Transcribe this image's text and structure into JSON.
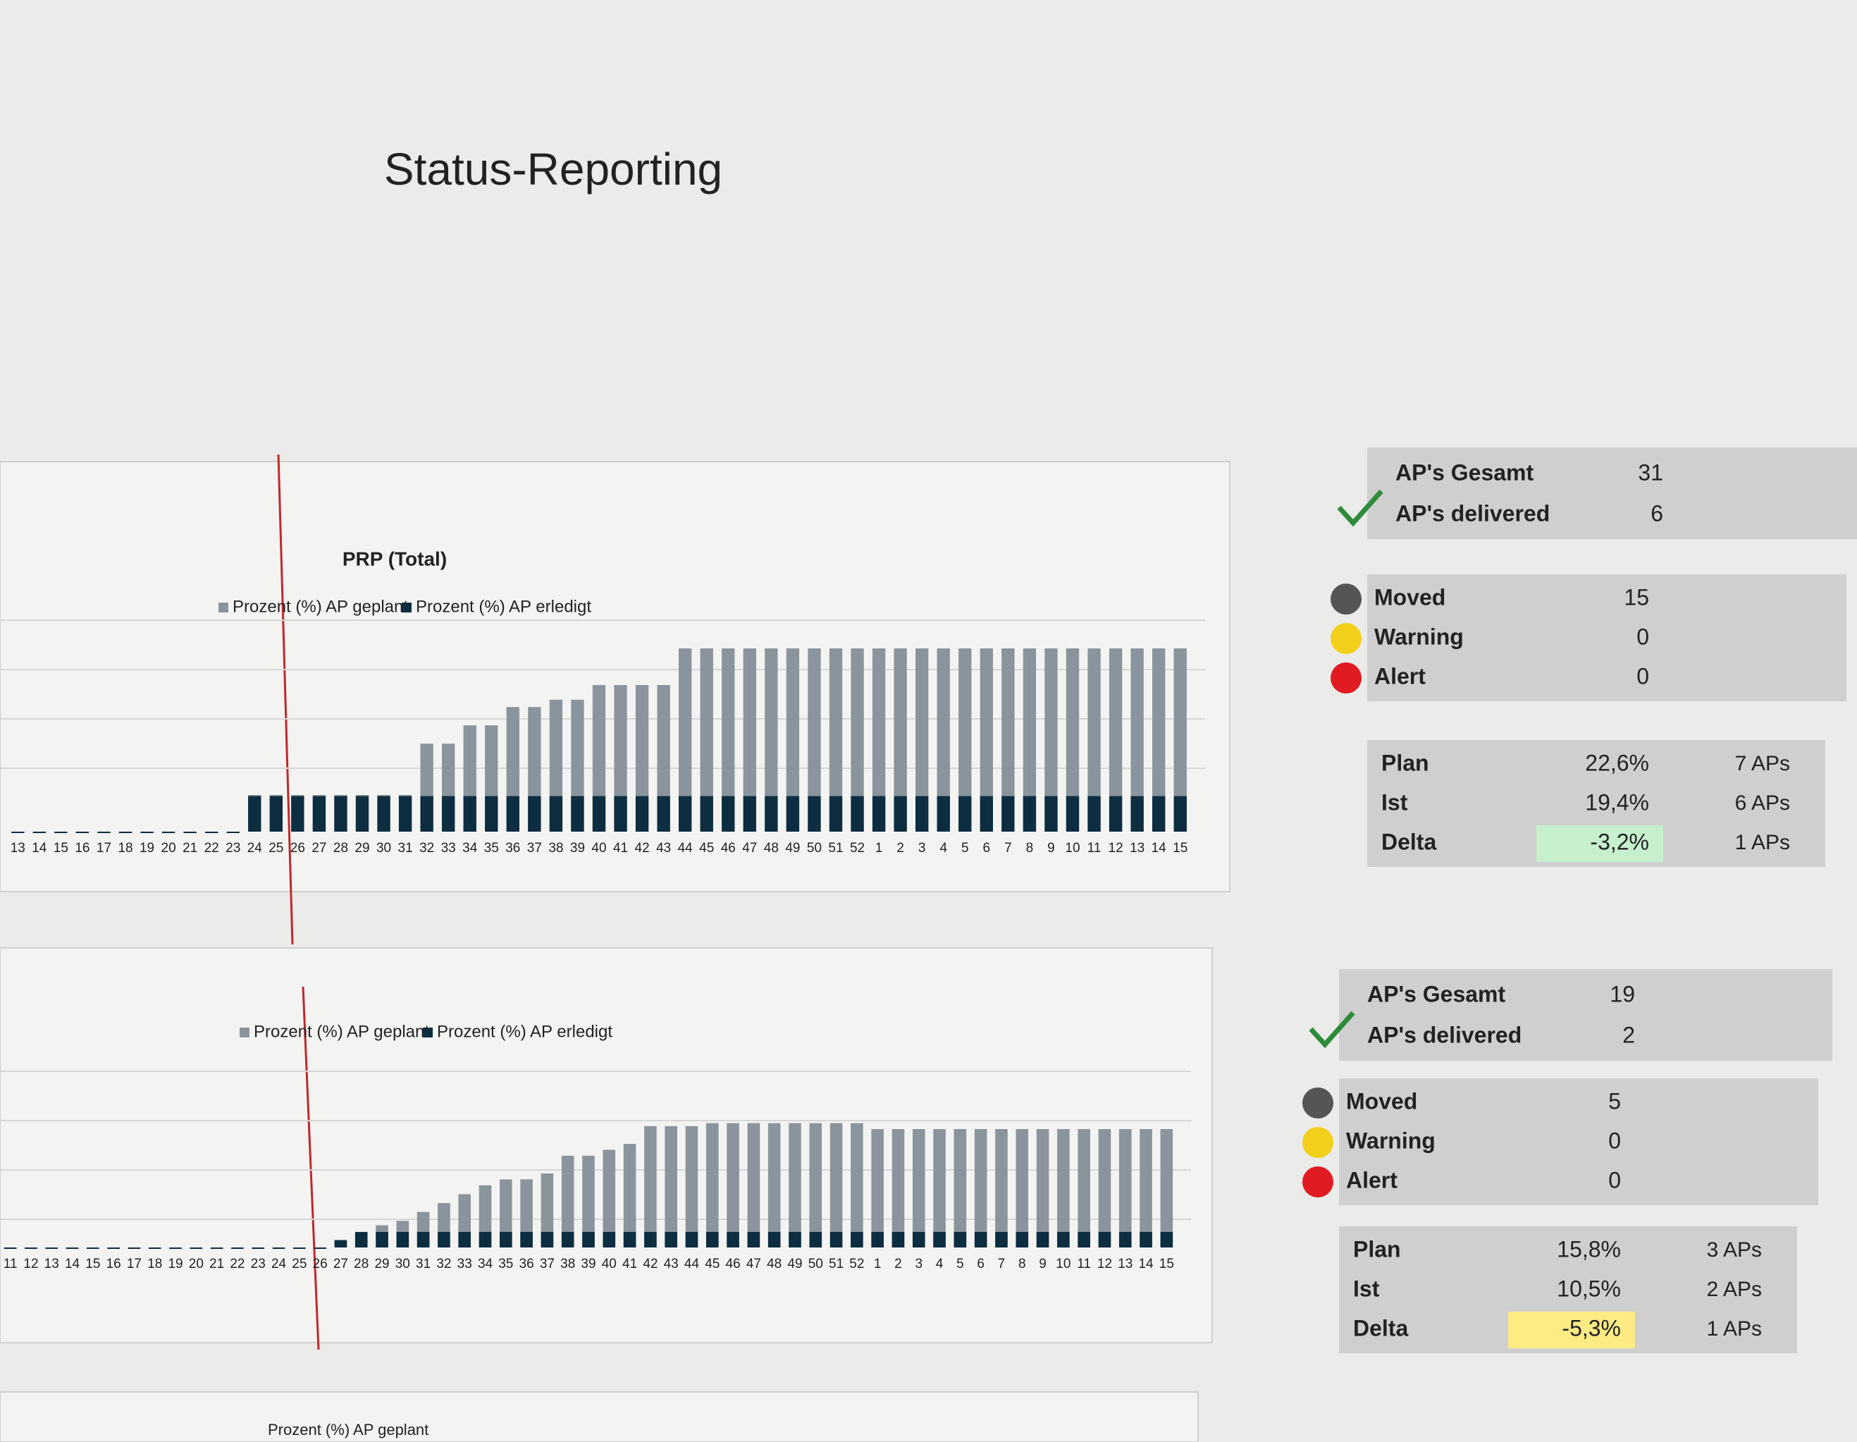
{
  "title": "Status-Reporting",
  "chart_data": [
    {
      "type": "bar",
      "title": "PRP (Total)",
      "categories": [
        "13",
        "14",
        "15",
        "16",
        "17",
        "18",
        "19",
        "20",
        "21",
        "22",
        "23",
        "24",
        "25",
        "26",
        "27",
        "28",
        "29",
        "30",
        "31",
        "32",
        "33",
        "34",
        "35",
        "36",
        "37",
        "38",
        "39",
        "40",
        "41",
        "42",
        "43",
        "44",
        "45",
        "46",
        "47",
        "48",
        "49",
        "50",
        "51",
        "52",
        "1",
        "2",
        "3",
        "4",
        "5",
        "6",
        "7",
        "8",
        "9",
        "10",
        "11",
        "12",
        "13",
        "14",
        "15"
      ],
      "series": [
        {
          "name": "Prozent (%) AP geplant",
          "color": "#8a949c",
          "values": [
            0,
            0,
            0,
            0,
            0,
            0,
            0,
            0,
            0,
            0,
            0,
            20,
            20,
            20,
            20,
            20,
            20,
            20,
            20,
            48,
            48,
            58,
            58,
            68,
            68,
            72,
            72,
            80,
            80,
            80,
            80,
            100,
            100,
            100,
            100,
            100,
            100,
            100,
            100,
            100,
            100,
            100,
            100,
            100,
            100,
            100,
            100,
            100,
            100,
            100,
            100,
            100,
            100,
            100,
            100
          ]
        },
        {
          "name": "Prozent (%) AP erledigt",
          "color": "#0d2d40",
          "values": [
            0,
            0,
            0,
            0,
            0,
            0,
            0,
            0,
            0,
            0,
            0,
            19.4,
            19.4,
            19.4,
            19.4,
            19.4,
            19.4,
            19.4,
            19.4,
            19.4,
            19.4,
            19.4,
            19.4,
            19.4,
            19.4,
            19.4,
            19.4,
            19.4,
            19.4,
            19.4,
            19.4,
            19.4,
            19.4,
            19.4,
            19.4,
            19.4,
            19.4,
            19.4,
            19.4,
            19.4,
            19.4,
            19.4,
            19.4,
            19.4,
            19.4,
            19.4,
            19.4,
            19.4,
            19.4,
            19.4,
            19.4,
            19.4,
            19.4,
            19.4,
            19.4
          ]
        }
      ],
      "ylim": [
        0,
        100
      ]
    },
    {
      "type": "bar",
      "categories": [
        "11",
        "12",
        "13",
        "14",
        "15",
        "16",
        "17",
        "18",
        "19",
        "20",
        "21",
        "22",
        "23",
        "24",
        "25",
        "26",
        "27",
        "28",
        "29",
        "30",
        "31",
        "32",
        "33",
        "34",
        "35",
        "36",
        "37",
        "38",
        "39",
        "40",
        "41",
        "42",
        "43",
        "44",
        "45",
        "46",
        "47",
        "48",
        "49",
        "50",
        "51",
        "52",
        "1",
        "2",
        "3",
        "4",
        "5",
        "6",
        "7",
        "8",
        "9",
        "10",
        "11",
        "12",
        "13",
        "14",
        "15"
      ],
      "series": [
        {
          "name": "Prozent (%) AP geplant",
          "color": "#8a949c",
          "values": [
            0,
            0,
            0,
            0,
            0,
            0,
            0,
            0,
            0,
            0,
            0,
            0,
            0,
            0,
            0,
            0,
            5,
            10,
            15,
            18,
            24,
            30,
            36,
            42,
            46,
            46,
            50,
            62,
            62,
            66,
            70,
            82,
            82,
            82,
            84,
            84,
            84,
            84,
            84,
            84,
            84,
            84,
            80,
            80,
            80,
            80,
            80,
            80,
            80,
            80,
            80,
            80,
            80,
            80,
            80,
            80,
            80
          ]
        },
        {
          "name": "Prozent (%) AP erledigt",
          "color": "#0d2d40",
          "values": [
            0,
            0,
            0,
            0,
            0,
            0,
            0,
            0,
            0,
            0,
            0,
            0,
            0,
            0,
            0,
            0,
            5,
            10.5,
            10.5,
            10.5,
            10.5,
            10.5,
            10.5,
            10.5,
            10.5,
            10.5,
            10.5,
            10.5,
            10.5,
            10.5,
            10.5,
            10.5,
            10.5,
            10.5,
            10.5,
            10.5,
            10.5,
            10.5,
            10.5,
            10.5,
            10.5,
            10.5,
            10.5,
            10.5,
            10.5,
            10.5,
            10.5,
            10.5,
            10.5,
            10.5,
            10.5,
            10.5,
            10.5,
            10.5,
            10.5,
            10.5,
            10.5
          ]
        }
      ],
      "ylim": [
        0,
        100
      ]
    }
  ],
  "summaries": [
    {
      "totals": [
        {
          "label": "AP's Gesamt",
          "value": "31"
        },
        {
          "label": "AP's delivered",
          "value": "6"
        }
      ],
      "status": [
        {
          "label": "Moved",
          "value": "15"
        },
        {
          "label": "Warning",
          "value": "0"
        },
        {
          "label": "Alert",
          "value": "0"
        }
      ],
      "kpi": [
        {
          "label": "Plan",
          "value": "22,6%",
          "aps": "7 APs"
        },
        {
          "label": "Ist",
          "value": "19,4%",
          "aps": "6 APs"
        },
        {
          "label": "Delta",
          "value": "-3,2%",
          "aps": "1 APs"
        }
      ]
    },
    {
      "totals": [
        {
          "label": "AP's Gesamt",
          "value": "19"
        },
        {
          "label": "AP's delivered",
          "value": "2"
        }
      ],
      "status": [
        {
          "label": "Moved",
          "value": "5"
        },
        {
          "label": "Warning",
          "value": "0"
        },
        {
          "label": "Alert",
          "value": "0"
        }
      ],
      "kpi": [
        {
          "label": "Plan",
          "value": "15,8%",
          "aps": "3 APs"
        },
        {
          "label": "Ist",
          "value": "10,5%",
          "aps": "2 APs"
        },
        {
          "label": "Delta",
          "value": "-5,3%",
          "aps": "1 APs"
        }
      ]
    }
  ],
  "footer_legend": "Prozent (%) AP geplant"
}
